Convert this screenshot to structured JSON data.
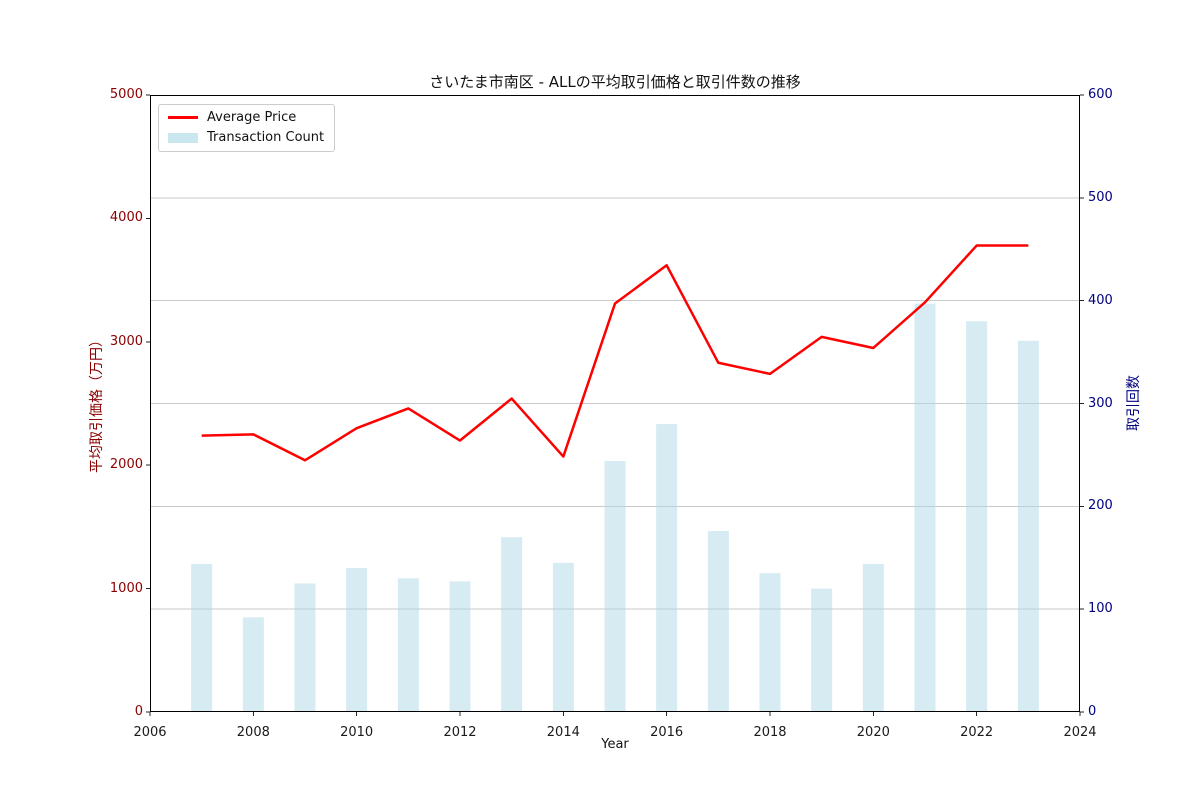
{
  "title": "さいたま市南区 - ALLの平均取引価格と取引件数の推移",
  "legend": {
    "items": [
      {
        "label": "Average Price",
        "swatch": "line"
      },
      {
        "label": "Transaction Count",
        "swatch": "patch"
      }
    ]
  },
  "colors": {
    "line": "#ff0000",
    "bar_fill": "#add8e6",
    "bar_opacity": 0.5,
    "left_axis_text": "#8b0000",
    "right_axis_text": "#000080",
    "grid": "#c9c9c9",
    "spine": "#000000",
    "tick_mark": "#262626",
    "x_tick_text": "#1a1a1a",
    "legend_border": "#cccccc"
  },
  "chart_data": {
    "type": "combo line+bar, dual y-axis",
    "title": "さいたま市南区 - ALLの平均取引価格と取引件数の推移",
    "xlabel": "Year",
    "ylabel_left": "平均取引価格（万円）",
    "ylabel_right": "取引回数",
    "xlim": [
      2006,
      2024
    ],
    "ylim_left": [
      0,
      5000
    ],
    "ylim_right": [
      0,
      600
    ],
    "xticks": [
      2006,
      2008,
      2010,
      2012,
      2014,
      2016,
      2018,
      2020,
      2022,
      2024
    ],
    "yticks_left": [
      0,
      1000,
      2000,
      3000,
      4000,
      5000
    ],
    "yticks_right": [
      0,
      100,
      200,
      300,
      400,
      500,
      600
    ],
    "grid": "horizontal gridlines at right-axis ticks 100-500",
    "legend_position": "upper-left",
    "x": [
      2007,
      2008,
      2009,
      2010,
      2011,
      2012,
      2013,
      2014,
      2015,
      2016,
      2017,
      2018,
      2019,
      2020,
      2021,
      2022,
      2023
    ],
    "series": [
      {
        "name": "Average Price",
        "type": "line",
        "axis": "left",
        "color": "#ff0000",
        "values": [
          2240,
          2250,
          2040,
          2300,
          2460,
          2200,
          2540,
          2070,
          3310,
          3620,
          2830,
          2740,
          3040,
          2950,
          3320,
          3780,
          3780
        ]
      },
      {
        "name": "Transaction Count",
        "type": "bar",
        "axis": "right",
        "color": "#add8e6",
        "values": [
          144,
          92,
          125,
          140,
          130,
          127,
          170,
          145,
          244,
          280,
          176,
          135,
          120,
          144,
          397,
          380,
          361
        ]
      }
    ]
  }
}
